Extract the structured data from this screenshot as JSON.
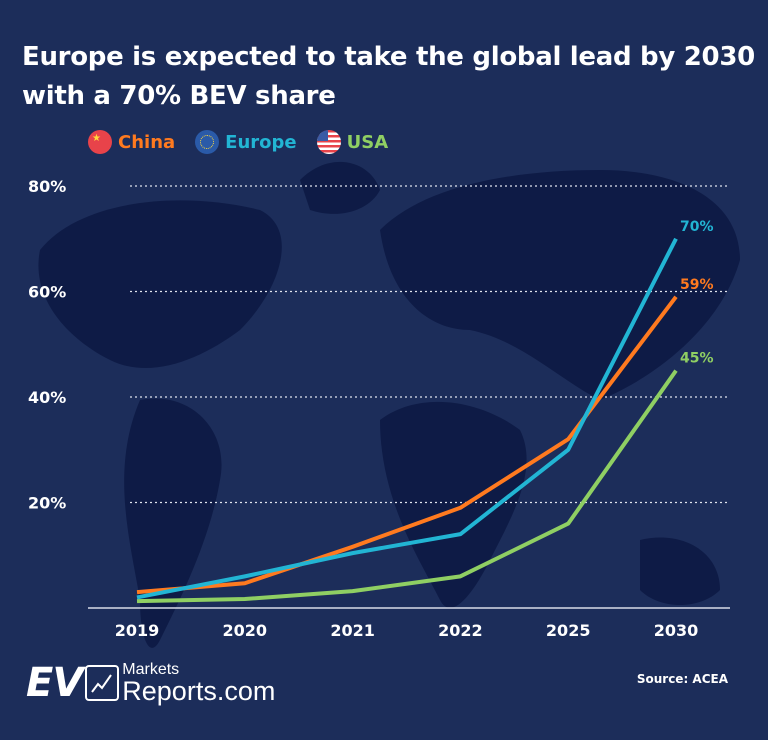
{
  "title_line1": "Europe is expected to take the global lead by 2030",
  "title_line2": "with a 70% BEV share",
  "legend": [
    {
      "name": "China",
      "color": "#ff7a1f",
      "icon": "china-flag-icon"
    },
    {
      "name": "Europe",
      "color": "#22b5d4",
      "icon": "eu-flag-icon"
    },
    {
      "name": "USA",
      "color": "#8fcf63",
      "icon": "usa-flag-icon"
    }
  ],
  "chart_data": {
    "type": "line",
    "categories": [
      "2019",
      "2020",
      "2021",
      "2022",
      "2025",
      "2030"
    ],
    "series": [
      {
        "name": "China",
        "color": "#ff7a1f",
        "values": [
          3,
          4.7,
          11.6,
          19,
          32,
          59
        ],
        "end_label": "59%"
      },
      {
        "name": "Europe",
        "color": "#22b5d4",
        "values": [
          2,
          6,
          10.4,
          14,
          30,
          70
        ],
        "end_label": "70%"
      },
      {
        "name": "USA",
        "color": "#8fcf63",
        "values": [
          1.3,
          1.7,
          3.2,
          6,
          16,
          45
        ],
        "end_label": "45%"
      }
    ],
    "yticks": [
      "20%",
      "40%",
      "60%",
      "80%"
    ],
    "ytick_values": [
      20,
      40,
      60,
      80
    ],
    "ylim": [
      0,
      80
    ],
    "grid": true,
    "legend_placement": "top-left"
  },
  "logo": {
    "ev": "EV",
    "markets": "Markets",
    "reports": "Reports.com"
  },
  "source": "Source: ACEA"
}
